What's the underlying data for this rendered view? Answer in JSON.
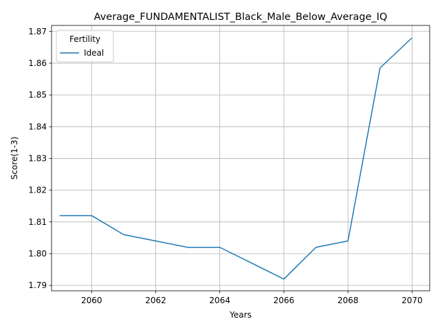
{
  "chart_data": {
    "type": "line",
    "title": "Average_FUNDAMENTALIST_Black_Male_Below_Average_IQ",
    "xlabel": "Years",
    "ylabel": "Score(1-3)",
    "xlim": [
      2058.75,
      2070.55
    ],
    "ylim": [
      1.7883,
      1.8719
    ],
    "xticks": [
      2060,
      2062,
      2064,
      2066,
      2068,
      2070
    ],
    "yticks": [
      1.79,
      1.8,
      1.81,
      1.82,
      1.83,
      1.84,
      1.85,
      1.86,
      1.87
    ],
    "ytick_labels": [
      "1.79",
      "1.80",
      "1.81",
      "1.82",
      "1.83",
      "1.84",
      "1.85",
      "1.86",
      "1.87"
    ],
    "grid": true,
    "legend": {
      "title": "Fertility",
      "placement": "upper-left"
    },
    "series": [
      {
        "name": "Ideal",
        "color": "#1f77b4",
        "x": [
          2059,
          2060,
          2061,
          2062,
          2063,
          2064,
          2065,
          2066,
          2067,
          2068,
          2069,
          2070
        ],
        "y": [
          1.812,
          1.812,
          1.806,
          1.804,
          1.802,
          1.802,
          1.797,
          1.792,
          1.802,
          1.804,
          1.8585,
          1.868
        ]
      }
    ]
  }
}
